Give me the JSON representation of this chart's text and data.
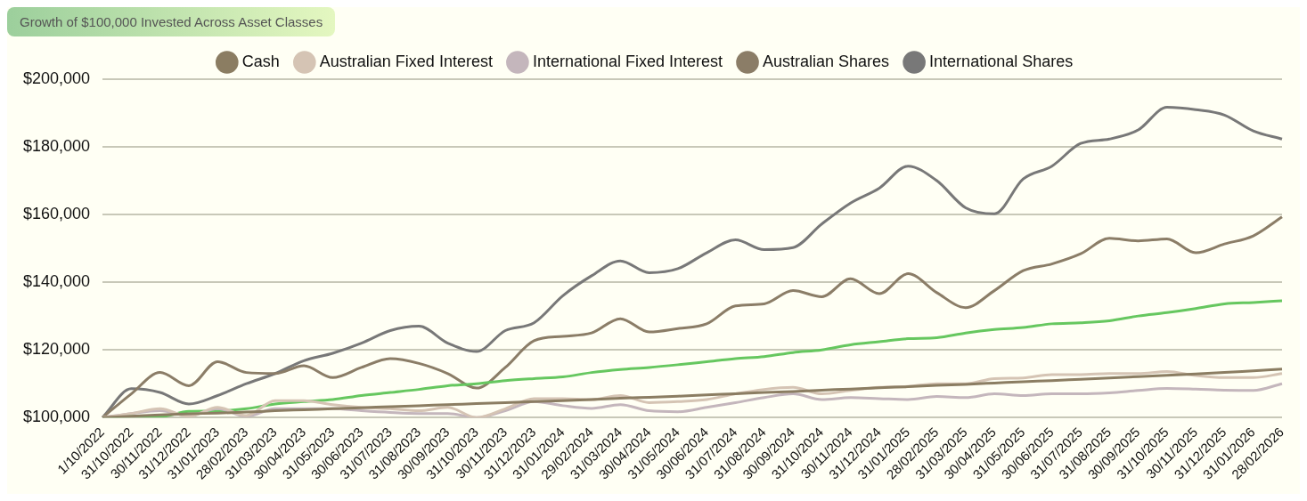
{
  "chart_data": {
    "type": "line",
    "title": "Growth of $100,000 Invested Across Asset Classes",
    "categories": [
      "1/10/2022",
      "31/10/2022",
      "30/11/2022",
      "31/12/2022",
      "31/01/2023",
      "28/02/2023",
      "31/03/2023",
      "30/04/2023",
      "31/05/2023",
      "30/06/2023",
      "31/07/2023",
      "31/08/2023",
      "30/09/2023",
      "31/10/2023",
      "30/11/2023",
      "31/12/2023",
      "31/01/2024",
      "29/02/2024",
      "31/03/2024",
      "30/04/2024",
      "31/05/2024",
      "30/06/2024",
      "31/07/2024",
      "31/08/2024",
      "30/09/2024",
      "31/10/2024",
      "30/11/2024",
      "31/12/2024",
      "31/01/2025",
      "28/02/2025",
      "31/03/2025",
      "30/04/2025",
      "31/05/2025",
      "30/06/2025",
      "31/07/2025",
      "31/08/2025",
      "30/09/2025",
      "31/10/2025",
      "30/11/2025",
      "31/12/2025",
      "31/01/2026",
      "28/02/2026"
    ],
    "series": [
      {
        "name": "Cash",
        "color": "#8b7d62",
        "values": [
          100000,
          100400,
          100800,
          101100,
          101300,
          101600,
          102000,
          102300,
          102600,
          102900,
          103200,
          103500,
          103800,
          104100,
          104400,
          104700,
          105000,
          105300,
          105700,
          106000,
          106300,
          106700,
          107000,
          107400,
          107700,
          108100,
          108400,
          108800,
          109100,
          109500,
          109800,
          110200,
          110600,
          110900,
          111300,
          111700,
          112100,
          112500,
          112900,
          113300,
          113800,
          114300
        ]
      },
      {
        "name": "Australian Fixed Interest",
        "color": "#d5c4b4",
        "values": [
          100000,
          101200,
          102600,
          100300,
          103000,
          100600,
          105000,
          105000,
          103800,
          103000,
          102600,
          102000,
          103000,
          100000,
          102600,
          105600,
          105600,
          105300,
          106500,
          104400,
          104700,
          105300,
          107000,
          108300,
          108900,
          107000,
          108000,
          108900,
          109200,
          110000,
          110000,
          111500,
          111700,
          112700,
          112700,
          113000,
          113000,
          113600,
          112400,
          111800,
          111800,
          113000
        ]
      },
      {
        "name": "International Fixed Interest",
        "color": "#c4b6bc",
        "values": [
          100000,
          101200,
          102000,
          100600,
          102600,
          100300,
          102600,
          102600,
          102600,
          102000,
          101500,
          101200,
          101200,
          100000,
          102000,
          104700,
          103500,
          102700,
          103800,
          102000,
          101700,
          103000,
          104400,
          105900,
          107000,
          105300,
          105900,
          105600,
          105300,
          106200,
          105900,
          107000,
          106500,
          107000,
          107000,
          107300,
          108000,
          108600,
          108400,
          108100,
          108000,
          110000
        ]
      },
      {
        "color": "#66c75f",
        "values": [
          100000,
          100300,
          100300,
          101800,
          101900,
          102600,
          104000,
          104700,
          105300,
          106500,
          107400,
          108300,
          109400,
          110000,
          110900,
          111500,
          112000,
          113300,
          114200,
          114800,
          115600,
          116500,
          117400,
          118000,
          119200,
          120000,
          121500,
          122400,
          123300,
          123600,
          125000,
          126000,
          126600,
          127700,
          128000,
          128600,
          130000,
          131000,
          132200,
          133600,
          134000,
          134500
        ]
      },
      {
        "name": "Australian Shares",
        "color": "#8b7d67",
        "values": [
          100000,
          107000,
          113300,
          109400,
          116500,
          113300,
          113000,
          115300,
          111800,
          114800,
          117400,
          116000,
          113000,
          108700,
          114800,
          122700,
          124000,
          125000,
          129200,
          125300,
          126300,
          127700,
          133000,
          133600,
          137500,
          135700,
          141000,
          136600,
          142500,
          136900,
          132500,
          137500,
          143400,
          145400,
          148400,
          153000,
          152200,
          152800,
          148700,
          151300,
          153700,
          159300
        ]
      },
      {
        "name": "International Shares",
        "color": "#787878",
        "values": [
          100000,
          108500,
          107400,
          104000,
          106500,
          110000,
          113000,
          116800,
          119000,
          122000,
          125700,
          127000,
          122000,
          119500,
          125700,
          128000,
          136000,
          141900,
          146300,
          142800,
          144000,
          148700,
          152500,
          149600,
          150200,
          157200,
          163400,
          167800,
          174300,
          170000,
          162000,
          160200,
          170500,
          174300,
          181000,
          182300,
          185000,
          191700,
          191000,
          189400,
          184700,
          182300
        ]
      }
    ],
    "ylim": [
      100000,
      200000
    ],
    "yticks": [
      {
        "value": 100000,
        "label": "$100,000"
      },
      {
        "value": 120000,
        "label": "$120,000"
      },
      {
        "value": 140000,
        "label": "$140,000"
      },
      {
        "value": 160000,
        "label": "$160,000"
      },
      {
        "value": 180000,
        "label": "$180,000"
      },
      {
        "value": 200000,
        "label": "$200,000"
      }
    ],
    "grid": "y",
    "legend": "top",
    "marker": "none",
    "line_style": "solid"
  }
}
